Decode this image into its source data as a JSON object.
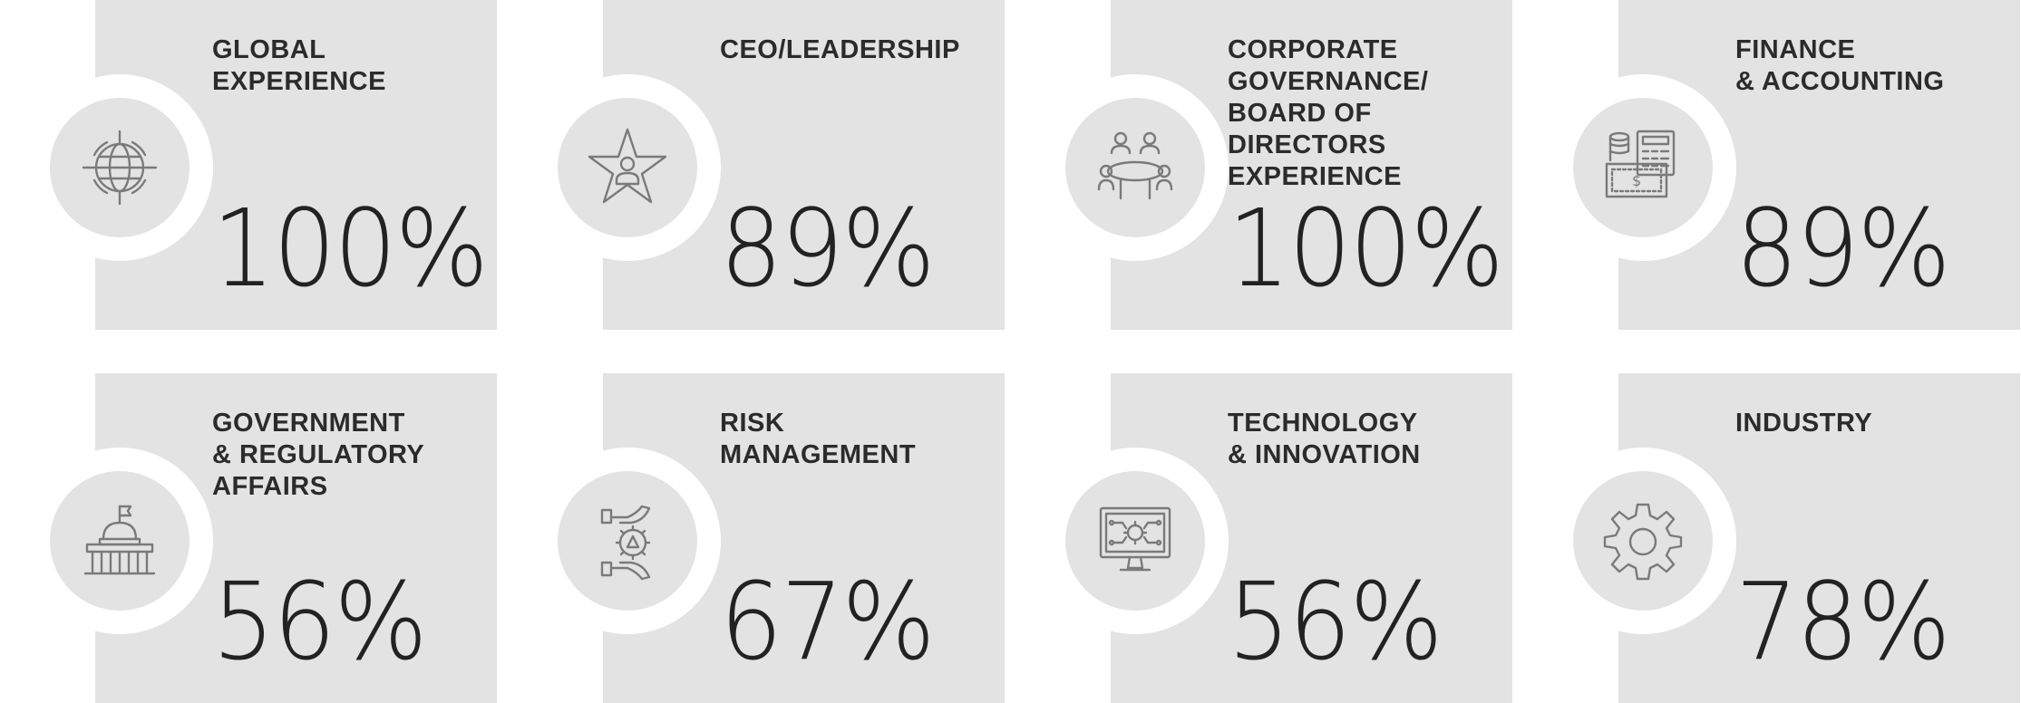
{
  "tiles": [
    {
      "label": "GLOBAL\nEXPERIENCE",
      "value": "100%",
      "icon": "globe-icon"
    },
    {
      "label": "CEO/LEADERSHIP",
      "value": "89%",
      "icon": "star-person-icon"
    },
    {
      "label": "CORPORATE\nGOVERNANCE/\nBOARD OF\nDIRECTORS\nEXPERIENCE",
      "value": "100%",
      "icon": "boardroom-icon"
    },
    {
      "label": "FINANCE\n& ACCOUNTING",
      "value": "89%",
      "icon": "finance-icon"
    },
    {
      "label": "GOVERNMENT\n& REGULATORY\nAFFAIRS",
      "value": "56%",
      "icon": "capitol-icon"
    },
    {
      "label": "RISK\nMANAGEMENT",
      "value": "67%",
      "icon": "risk-gear-icon"
    },
    {
      "label": "TECHNOLOGY\n& INNOVATION",
      "value": "56%",
      "icon": "monitor-circuit-icon"
    },
    {
      "label": "INDUSTRY",
      "value": "78%",
      "icon": "gear-icon"
    }
  ],
  "colors": {
    "panel": "#e3e3e3",
    "icon": "#7a7a7a",
    "text": "#2b2b2b"
  }
}
